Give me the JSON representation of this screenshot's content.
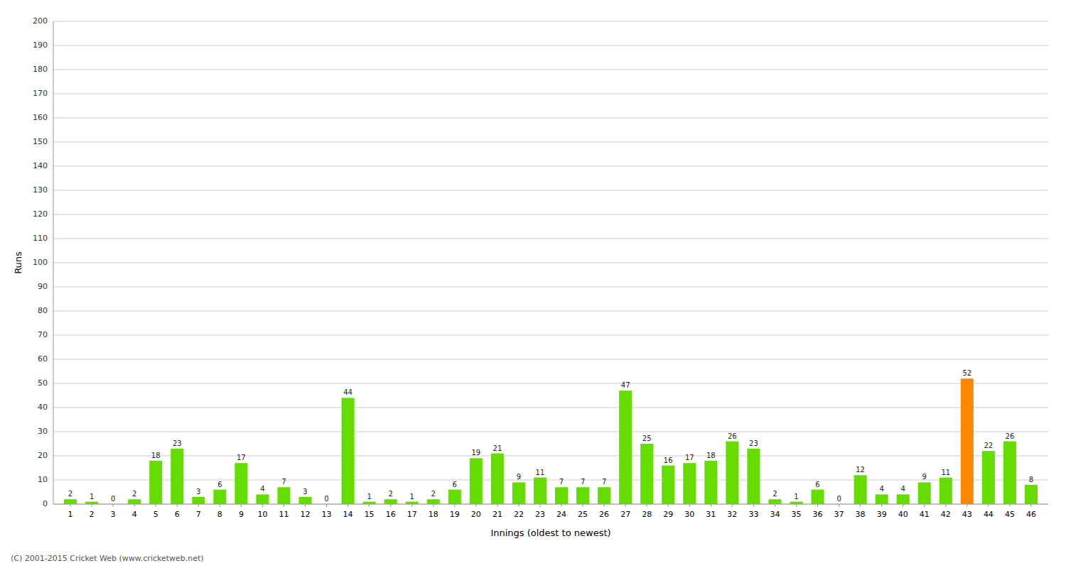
{
  "chart_data": {
    "type": "bar",
    "xlabel": "Innings (oldest to newest)",
    "ylabel": "Runs",
    "categories": [
      "1",
      "2",
      "3",
      "4",
      "5",
      "6",
      "7",
      "8",
      "9",
      "10",
      "11",
      "12",
      "13",
      "14",
      "15",
      "16",
      "17",
      "18",
      "19",
      "20",
      "21",
      "22",
      "23",
      "24",
      "25",
      "26",
      "27",
      "28",
      "29",
      "30",
      "31",
      "32",
      "33",
      "34",
      "35",
      "36",
      "37",
      "38",
      "39",
      "40",
      "41",
      "42",
      "43",
      "44",
      "45",
      "46"
    ],
    "values": [
      2,
      1,
      0,
      2,
      18,
      23,
      3,
      6,
      17,
      4,
      7,
      3,
      0,
      44,
      1,
      2,
      1,
      2,
      6,
      19,
      21,
      9,
      11,
      7,
      7,
      7,
      47,
      25,
      16,
      17,
      18,
      26,
      23,
      2,
      1,
      6,
      0,
      12,
      4,
      4,
      9,
      11,
      52,
      22,
      26,
      8
    ],
    "colors": [
      "#66dd00",
      "#66dd00",
      "#66dd00",
      "#66dd00",
      "#66dd00",
      "#66dd00",
      "#66dd00",
      "#66dd00",
      "#66dd00",
      "#66dd00",
      "#66dd00",
      "#66dd00",
      "#66dd00",
      "#66dd00",
      "#66dd00",
      "#66dd00",
      "#66dd00",
      "#66dd00",
      "#66dd00",
      "#66dd00",
      "#66dd00",
      "#66dd00",
      "#66dd00",
      "#66dd00",
      "#66dd00",
      "#66dd00",
      "#66dd00",
      "#66dd00",
      "#66dd00",
      "#66dd00",
      "#66dd00",
      "#66dd00",
      "#66dd00",
      "#66dd00",
      "#66dd00",
      "#66dd00",
      "#66dd00",
      "#66dd00",
      "#66dd00",
      "#66dd00",
      "#66dd00",
      "#66dd00",
      "#ff8800",
      "#66dd00",
      "#66dd00",
      "#66dd00"
    ],
    "ylim": [
      0,
      200
    ],
    "yticks": [
      0,
      10,
      20,
      30,
      40,
      50,
      60,
      70,
      80,
      90,
      100,
      110,
      120,
      130,
      140,
      150,
      160,
      170,
      180,
      190,
      200
    ],
    "grid": true,
    "data_labels": true,
    "footer": "(C) 2001-2015 Cricket Web (www.cricketweb.net)"
  }
}
